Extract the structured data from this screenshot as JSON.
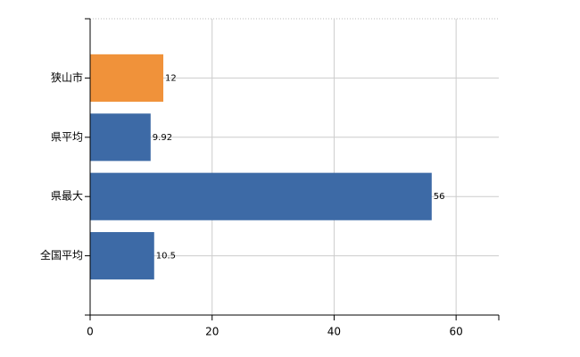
{
  "chart_data": {
    "type": "bar",
    "orientation": "horizontal",
    "categories": [
      "狭山市",
      "県平均",
      "県最大",
      "全国平均"
    ],
    "values": [
      12,
      9.92,
      56,
      10.5
    ],
    "colors": [
      "#f0923a",
      "#3d6aa6",
      "#3d6aa6",
      "#3d6aa6"
    ],
    "xlim": [
      0,
      67
    ],
    "xticks": [
      0,
      20,
      40,
      60
    ],
    "grid": true
  }
}
